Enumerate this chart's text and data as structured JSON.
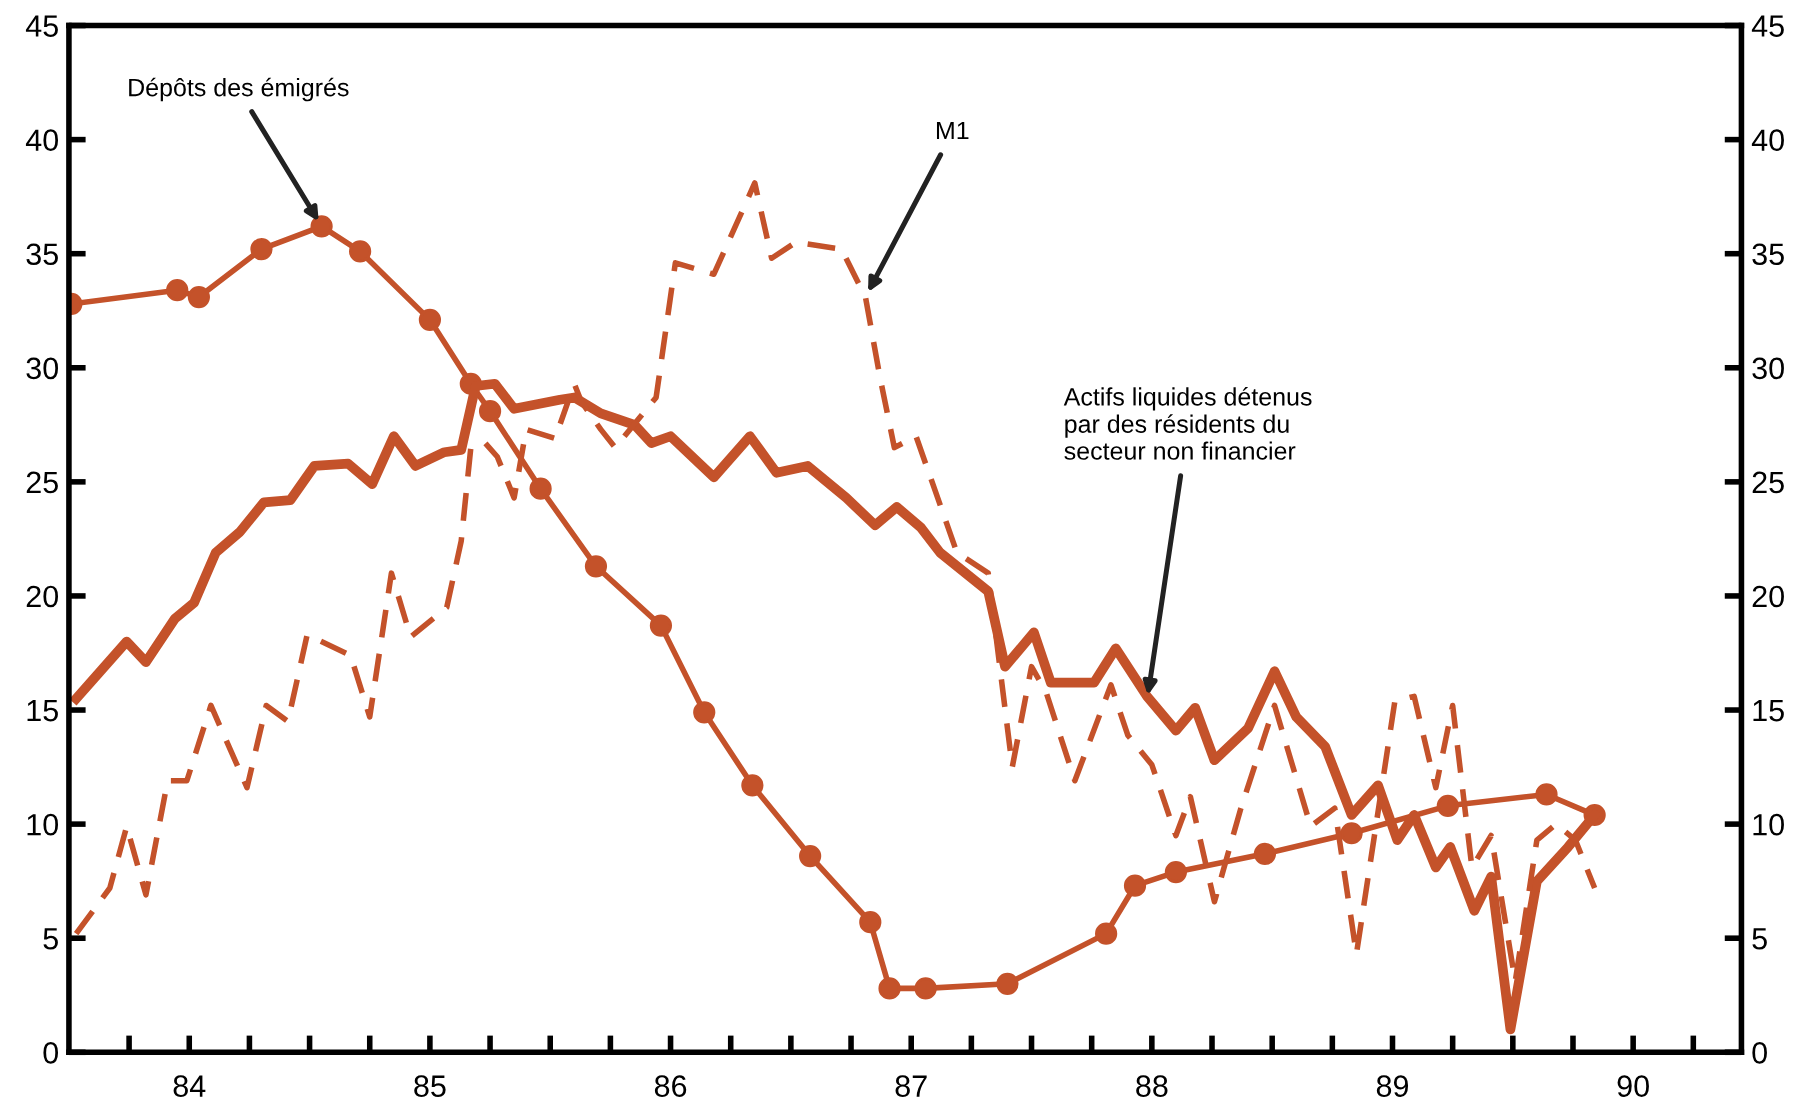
{
  "chart_data": {
    "type": "line",
    "xlim": [
      83.5,
      90.45
    ],
    "xticks": [
      {
        "value": 83.75,
        "label": null
      },
      84,
      {
        "value": 84.25,
        "label": null
      },
      {
        "value": 84.5,
        "label": null
      },
      {
        "value": 84.75,
        "label": null
      },
      85,
      {
        "value": 85.25,
        "label": null
      },
      {
        "value": 85.5,
        "label": null
      },
      {
        "value": 85.75,
        "label": null
      },
      86,
      {
        "value": 86.25,
        "label": null
      },
      {
        "value": 86.5,
        "label": null
      },
      {
        "value": 86.75,
        "label": null
      },
      87,
      {
        "value": 87.25,
        "label": null
      },
      {
        "value": 87.5,
        "label": null
      },
      {
        "value": 87.75,
        "label": null
      },
      88,
      {
        "value": 88.25,
        "label": null
      },
      {
        "value": 88.5,
        "label": null
      },
      {
        "value": 88.75,
        "label": null
      },
      89,
      {
        "value": 89.25,
        "label": null
      },
      {
        "value": 89.5,
        "label": null
      },
      {
        "value": 89.75,
        "label": null
      },
      90,
      {
        "value": 90.25,
        "label": null
      }
    ],
    "ylim": [
      0,
      45
    ],
    "yticks": [
      0,
      5,
      10,
      15,
      20,
      25,
      30,
      35,
      40,
      45
    ],
    "y2lim": [
      0,
      45
    ],
    "y2ticks": [
      0,
      5,
      10,
      15,
      20,
      25,
      30,
      35,
      40,
      45
    ],
    "grid": false,
    "legend": false,
    "series": [
      {
        "color": "#c4522a",
        "marker": "circle",
        "line_style": "solid",
        "x": [
          83.51,
          83.95,
          84.04,
          84.3,
          84.55,
          84.71,
          85.0,
          85.17,
          85.25,
          85.46,
          85.69,
          85.96,
          86.14,
          86.34,
          86.58,
          86.83,
          86.91,
          87.06,
          87.4,
          87.81,
          87.93,
          88.1,
          88.47,
          88.83,
          89.23,
          89.64,
          89.84
        ],
        "values": [
          32.8,
          33.4,
          33.1,
          35.2,
          36.2,
          35.1,
          32.1,
          29.3,
          28.1,
          24.7,
          21.3,
          18.7,
          14.9,
          11.7,
          8.6,
          5.7,
          2.8,
          2.8,
          3.0,
          5.2,
          7.3,
          7.9,
          8.7,
          9.6,
          10.8,
          11.3,
          10.4
        ]
      },
      {
        "color": "#c4522a",
        "marker": "none",
        "line_style": "solid",
        "x": [
          83.53,
          83.74,
          83.82,
          83.94,
          84.02,
          84.11,
          84.21,
          84.31,
          84.42,
          84.52,
          84.66,
          84.76,
          84.85,
          84.94,
          85.06,
          85.13,
          85.19,
          85.27,
          85.35,
          85.54,
          85.6,
          85.71,
          85.85,
          85.92,
          86.0,
          86.18,
          86.33,
          86.44,
          86.57,
          86.73,
          86.85,
          86.94,
          87.04,
          87.12,
          87.32,
          87.39,
          87.51,
          87.58,
          87.76,
          87.85,
          87.98,
          88.1,
          88.18,
          88.26,
          88.4,
          88.51,
          88.6,
          88.72,
          88.83,
          88.94,
          89.02,
          89.09,
          89.18,
          89.24,
          89.34,
          89.41,
          89.49,
          89.6,
          89.73,
          89.84
        ],
        "values": [
          15.5,
          18.0,
          17.1,
          19.0,
          19.7,
          21.9,
          22.8,
          24.1,
          24.2,
          25.7,
          25.8,
          24.9,
          27.0,
          25.7,
          26.3,
          26.4,
          29.2,
          29.3,
          28.2,
          28.6,
          28.7,
          28.0,
          27.5,
          26.7,
          27.0,
          25.2,
          27.0,
          25.4,
          25.7,
          24.3,
          23.1,
          23.9,
          23.0,
          21.9,
          20.2,
          16.9,
          18.4,
          16.2,
          16.2,
          17.7,
          15.6,
          14.1,
          15.1,
          12.8,
          14.2,
          16.7,
          14.7,
          13.4,
          10.4,
          11.7,
          9.3,
          10.4,
          8.1,
          9.0,
          6.2,
          7.7,
          1.0,
          7.5,
          9.0,
          10.4
        ]
      },
      {
        "color": "#c4522a",
        "marker": "none",
        "line_style": "dashed",
        "x": [
          83.53,
          83.67,
          83.74,
          83.82,
          83.91,
          83.99,
          84.09,
          84.24,
          84.32,
          84.41,
          84.49,
          84.67,
          84.75,
          84.84,
          84.92,
          85.07,
          85.13,
          85.17,
          85.23,
          85.28,
          85.35,
          85.4,
          85.52,
          85.6,
          85.63,
          85.71,
          85.77,
          85.94,
          86.02,
          86.18,
          86.35,
          86.42,
          86.52,
          86.71,
          86.81,
          86.87,
          86.93,
          87.02,
          87.19,
          87.32,
          87.42,
          87.5,
          87.56,
          87.68,
          87.83,
          87.9,
          88.0,
          88.1,
          88.16,
          88.26,
          88.37,
          88.51,
          88.66,
          88.76,
          88.85,
          89.01,
          89.09,
          89.18,
          89.25,
          89.33,
          89.41,
          89.51,
          89.6,
          89.68,
          89.76,
          89.84
        ],
        "values": [
          5.2,
          7.2,
          9.9,
          6.9,
          11.9,
          11.9,
          15.2,
          11.6,
          15.2,
          14.5,
          18.3,
          17.4,
          14.7,
          21.0,
          18.2,
          19.5,
          22.4,
          26.5,
          26.7,
          26.1,
          24.3,
          27.3,
          26.9,
          29.3,
          28.5,
          27.3,
          26.5,
          28.7,
          34.6,
          34.1,
          38.1,
          34.8,
          35.5,
          35.2,
          33.1,
          29.6,
          26.5,
          27.0,
          21.9,
          21.0,
          12.5,
          16.9,
          15.8,
          11.9,
          16.1,
          13.9,
          12.6,
          9.5,
          11.2,
          6.6,
          10.7,
          15.2,
          9.9,
          10.7,
          4.3,
          15.4,
          15.6,
          11.6,
          15.2,
          8.1,
          9.5,
          3.1,
          9.3,
          10.0,
          9.3,
          7.2
        ]
      }
    ],
    "annotations": [
      {
        "text": "Dépôts des émigrés",
        "x": 84.55,
        "y": 36.2
      },
      {
        "text": "M1",
        "x": 86.81,
        "y": 33.1
      },
      {
        "text": "Actifs liquides détenus\npar des résidents du\nsecteur non financier",
        "x": 87.98,
        "y": 15.4
      }
    ]
  }
}
